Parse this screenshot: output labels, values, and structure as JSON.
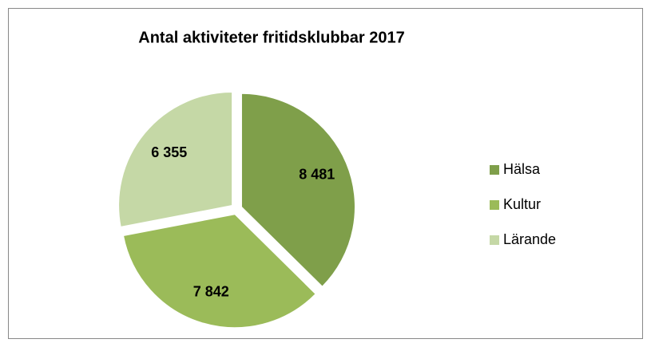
{
  "chart_data": {
    "type": "pie",
    "title": "Antal aktiviteter fritidsklubbar 2017",
    "categories": [
      "Hälsa",
      "Kultur",
      "Lärande"
    ],
    "values": [
      8481,
      7842,
      6355
    ],
    "value_labels": [
      "8 481",
      "7 842",
      "6 355"
    ],
    "colors": [
      "#7f9f4a",
      "#9bbb59",
      "#c5d8a6"
    ],
    "legend": "right"
  }
}
